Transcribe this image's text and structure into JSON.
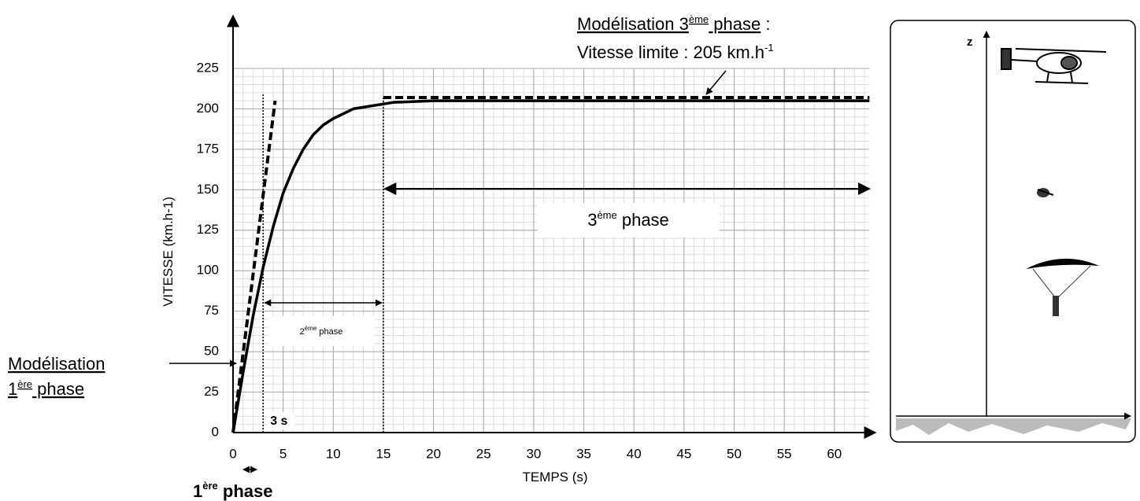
{
  "chart_data": {
    "type": "line",
    "xlabel": "TEMPS (s)",
    "ylabel": "VITESSE (km.h-1)",
    "xlim": [
      0,
      63.5
    ],
    "ylim": [
      0,
      225
    ],
    "xticks": [
      0,
      5,
      10,
      15,
      20,
      25,
      30,
      35,
      40,
      45,
      50,
      55,
      60
    ],
    "yticks": [
      0,
      25,
      50,
      75,
      100,
      125,
      150,
      175,
      200,
      225
    ],
    "grid": true,
    "minor_grid": {
      "x": 1,
      "y": 5
    },
    "series": [
      {
        "color": "#000000",
        "style": "solid",
        "x": [
          0,
          1,
          2,
          3,
          4,
          5,
          6,
          7,
          8,
          9,
          10,
          12,
          14,
          16,
          20,
          30,
          40,
          50,
          63.5
        ],
        "values": [
          0,
          37,
          72,
          102,
          127,
          148,
          163,
          175,
          184,
          190,
          194,
          200,
          202,
          204,
          205,
          205,
          205,
          205,
          205
        ]
      },
      {
        "color": "#000000",
        "style": "dashed",
        "x": [
          0,
          4.2
        ],
        "values": [
          0,
          205
        ]
      },
      {
        "color": "#000000",
        "style": "dashed",
        "x": [
          15,
          63.5
        ],
        "values": [
          207,
          207
        ]
      }
    ],
    "markers": [
      {
        "x": 3,
        "top": 210
      },
      {
        "x": 15,
        "top": 208
      }
    ]
  },
  "annotations": {
    "limit_model": [
      "Modélisation 3",
      "ème",
      " phase",
      " :"
    ],
    "limit_value": [
      "Vitesse limite : 205 km.h",
      "-1"
    ],
    "phase1_model": [
      "Modélisation",
      "1",
      "ère",
      " phase"
    ],
    "phase1": [
      "1",
      "ère",
      " phase"
    ],
    "phase2": [
      "2",
      "ème",
      " phase"
    ],
    "phase3": [
      "3",
      "ème",
      " phase"
    ],
    "t3": "3 s"
  },
  "diagram": {
    "axis_label": "z"
  }
}
